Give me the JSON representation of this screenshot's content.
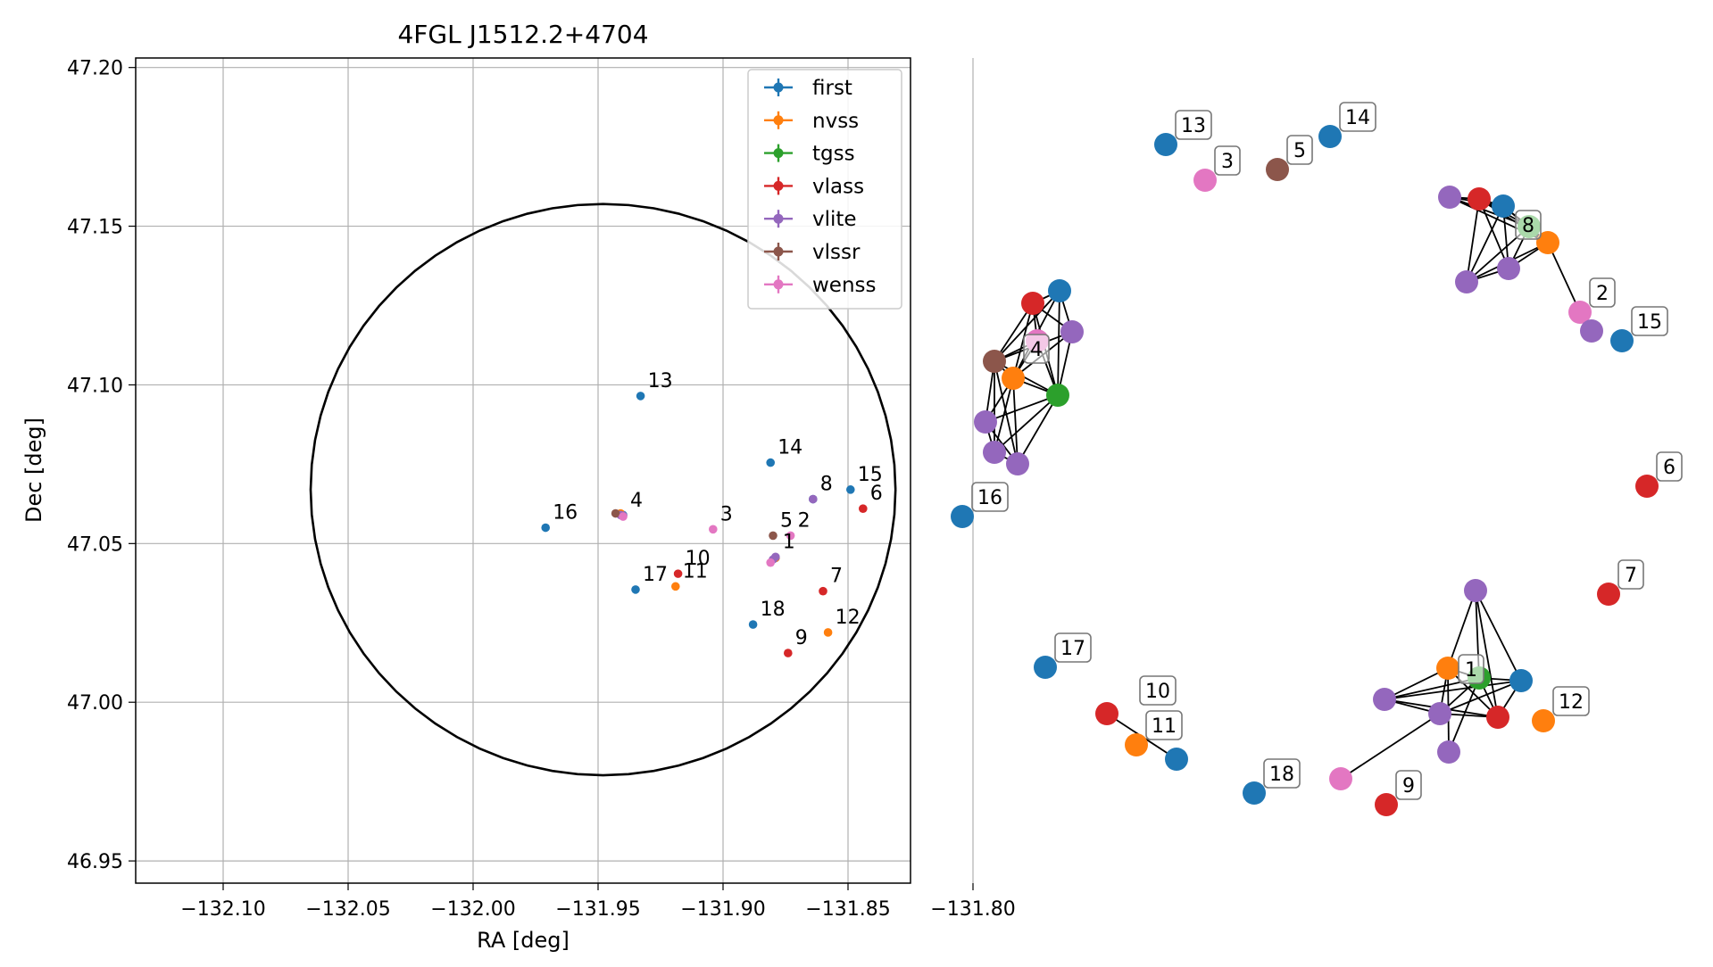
{
  "chart_data": [
    {
      "type": "scatter",
      "title": "4FGL J1512.2+4704",
      "xlabel": "RA [deg]",
      "ylabel": "Dec [deg]",
      "xlim": [
        -132.135,
        -131.825
      ],
      "ylim": [
        46.943,
        47.203
      ],
      "xticks": [
        -132.1,
        -132.05,
        -132.0,
        -131.95,
        -131.9,
        -131.85,
        -131.8
      ],
      "xtick_labels": [
        "−132.10",
        "−132.05",
        "−132.00",
        "−131.95",
        "−131.90",
        "−131.85",
        "−131.80"
      ],
      "yticks": [
        46.95,
        47.0,
        47.05,
        47.1,
        47.15,
        47.2
      ],
      "ytick_labels": [
        "46.95",
        "47.00",
        "47.05",
        "47.10",
        "47.15",
        "47.20"
      ],
      "grid": true,
      "legend_position": "top-right",
      "circle": {
        "center_ra": -131.948,
        "center_dec": 47.067,
        "radius_ra": 0.117,
        "radius_dec": 0.09
      },
      "series": [
        {
          "name": "first",
          "color": "#1f77b4"
        },
        {
          "name": "nvss",
          "color": "#ff7f0e"
        },
        {
          "name": "tgss",
          "color": "#2ca02c"
        },
        {
          "name": "vlass",
          "color": "#d62728"
        },
        {
          "name": "vlite",
          "color": "#9467bd"
        },
        {
          "name": "vlssr",
          "color": "#8c564b"
        },
        {
          "name": "wenss",
          "color": "#e377c2"
        }
      ],
      "points": [
        {
          "label": "13",
          "survey": "first",
          "ra": -131.933,
          "dec": 47.0965
        },
        {
          "label": "14",
          "survey": "first",
          "ra": -131.881,
          "dec": 47.0755
        },
        {
          "label": "15",
          "survey": "first",
          "ra": -131.849,
          "dec": 47.067
        },
        {
          "label": "16",
          "survey": "first",
          "ra": -131.971,
          "dec": 47.055
        },
        {
          "label": "17",
          "survey": "first",
          "ra": -131.935,
          "dec": 47.0355
        },
        {
          "label": "18",
          "survey": "first",
          "ra": -131.888,
          "dec": 47.0245
        },
        {
          "label": "",
          "survey": "first",
          "ra": -131.879,
          "dec": 47.0455
        },
        {
          "label": "",
          "survey": "first",
          "ra": -131.94,
          "dec": 47.059
        },
        {
          "label": "",
          "survey": "first",
          "ra": -131.864,
          "dec": 47.064
        },
        {
          "label": "11",
          "survey": "nvss",
          "ra": -131.919,
          "dec": 47.0365
        },
        {
          "label": "12",
          "survey": "nvss",
          "ra": -131.858,
          "dec": 47.022
        },
        {
          "label": "",
          "survey": "nvss",
          "ra": -131.941,
          "dec": 47.0595
        },
        {
          "label": "",
          "survey": "nvss",
          "ra": -131.879,
          "dec": 47.0455
        },
        {
          "label": "6",
          "survey": "vlass",
          "ra": -131.844,
          "dec": 47.061
        },
        {
          "label": "7",
          "survey": "vlass",
          "ra": -131.86,
          "dec": 47.035
        },
        {
          "label": "9",
          "survey": "vlass",
          "ra": -131.874,
          "dec": 47.0155
        },
        {
          "label": "10",
          "survey": "vlass",
          "ra": -131.918,
          "dec": 47.0405
        },
        {
          "label": "8",
          "survey": "vlite",
          "ra": -131.864,
          "dec": 47.064
        },
        {
          "label": "1",
          "survey": "vlite",
          "ra": -131.879,
          "dec": 47.0458
        },
        {
          "label": "",
          "survey": "vlite",
          "ra": -131.88,
          "dec": 47.045
        },
        {
          "label": "4",
          "survey": "vlite",
          "ra": -131.94,
          "dec": 47.0588
        },
        {
          "label": "",
          "survey": "vlite",
          "ra": -131.941,
          "dec": 47.059
        },
        {
          "label": "5",
          "survey": "vlssr",
          "ra": -131.88,
          "dec": 47.0525
        },
        {
          "label": "",
          "survey": "vlssr",
          "ra": -131.943,
          "dec": 47.0595
        },
        {
          "label": "3",
          "survey": "wenss",
          "ra": -131.904,
          "dec": 47.0545
        },
        {
          "label": "2",
          "survey": "wenss",
          "ra": -131.873,
          "dec": 47.0525
        },
        {
          "label": "",
          "survey": "wenss",
          "ra": -131.881,
          "dec": 47.044
        },
        {
          "label": "",
          "survey": "wenss",
          "ra": -131.94,
          "dec": 47.0585
        }
      ]
    },
    {
      "type": "network",
      "nodes": [
        {
          "id": "n13",
          "label": "13",
          "color": "#1f77b4"
        },
        {
          "id": "n3",
          "label": "3",
          "color": "#e377c2"
        },
        {
          "id": "n5",
          "label": "5",
          "color": "#8c564b"
        },
        {
          "id": "n14",
          "label": "14",
          "color": "#1f77b4"
        },
        {
          "id": "n8",
          "label": "8",
          "color": "#2ca02c"
        },
        {
          "id": "c1a",
          "label": "",
          "color": "#9467bd"
        },
        {
          "id": "c1b",
          "label": "",
          "color": "#d62728"
        },
        {
          "id": "c1c",
          "label": "",
          "color": "#1f77b4"
        },
        {
          "id": "c1d",
          "label": "",
          "color": "#ff7f0e"
        },
        {
          "id": "c1e",
          "label": "",
          "color": "#9467bd"
        },
        {
          "id": "c1f",
          "label": "",
          "color": "#9467bd"
        },
        {
          "id": "n2",
          "label": "2",
          "color": "#e377c2"
        },
        {
          "id": "c1g",
          "label": "",
          "color": "#9467bd"
        },
        {
          "id": "n15",
          "label": "15",
          "color": "#1f77b4"
        },
        {
          "id": "c2a",
          "label": "",
          "color": "#1f77b4"
        },
        {
          "id": "c2b",
          "label": "",
          "color": "#d62728"
        },
        {
          "id": "c2c",
          "label": "",
          "color": "#9467bd"
        },
        {
          "id": "c2d",
          "label": "",
          "color": "#e377c2"
        },
        {
          "id": "n4",
          "label": "4",
          "color": "#8c564b"
        },
        {
          "id": "c2e",
          "label": "",
          "color": "#ff7f0e"
        },
        {
          "id": "c2f",
          "label": "",
          "color": "#2ca02c"
        },
        {
          "id": "c2g",
          "label": "",
          "color": "#9467bd"
        },
        {
          "id": "c2h",
          "label": "",
          "color": "#9467bd"
        },
        {
          "id": "c2i",
          "label": "",
          "color": "#9467bd"
        },
        {
          "id": "n16",
          "label": "16",
          "color": "#1f77b4"
        },
        {
          "id": "n6",
          "label": "6",
          "color": "#d62728"
        },
        {
          "id": "n7",
          "label": "7",
          "color": "#d62728"
        },
        {
          "id": "n17",
          "label": "17",
          "color": "#1f77b4"
        },
        {
          "id": "c3a",
          "label": "",
          "color": "#9467bd"
        },
        {
          "id": "c3b",
          "label": "",
          "color": "#ff7f0e"
        },
        {
          "id": "n1",
          "label": "1",
          "color": "#2ca02c"
        },
        {
          "id": "c3c",
          "label": "",
          "color": "#1f77b4"
        },
        {
          "id": "c3d",
          "label": "",
          "color": "#9467bd"
        },
        {
          "id": "c3e",
          "label": "",
          "color": "#9467bd"
        },
        {
          "id": "c3f",
          "label": "",
          "color": "#d62728"
        },
        {
          "id": "c3g",
          "label": "",
          "color": "#9467bd"
        },
        {
          "id": "n12",
          "label": "12",
          "color": "#ff7f0e"
        },
        {
          "id": "n10",
          "label": "10",
          "color": "#d62728"
        },
        {
          "id": "n11",
          "label": "11",
          "color": "#ff7f0e"
        },
        {
          "id": "c4a",
          "label": "",
          "color": "#1f77b4"
        },
        {
          "id": "n18",
          "label": "18",
          "color": "#1f77b4"
        },
        {
          "id": "c4b",
          "label": "",
          "color": "#e377c2"
        },
        {
          "id": "n9",
          "label": "9",
          "color": "#d62728"
        }
      ],
      "edges": [
        [
          "c1a",
          "c1b"
        ],
        [
          "c1a",
          "c1c"
        ],
        [
          "c1a",
          "n8"
        ],
        [
          "c1a",
          "c1d"
        ],
        [
          "c1b",
          "c1c"
        ],
        [
          "c1b",
          "n8"
        ],
        [
          "c1b",
          "c1d"
        ],
        [
          "c1b",
          "c1e"
        ],
        [
          "c1b",
          "c1f"
        ],
        [
          "c1c",
          "n8"
        ],
        [
          "c1c",
          "c1d"
        ],
        [
          "c1c",
          "c1e"
        ],
        [
          "c1c",
          "c1f"
        ],
        [
          "n8",
          "c1d"
        ],
        [
          "n8",
          "c1e"
        ],
        [
          "n8",
          "c1f"
        ],
        [
          "c1d",
          "c1e"
        ],
        [
          "c1d",
          "c1f"
        ],
        [
          "c1e",
          "c1f"
        ],
        [
          "c1d",
          "n2"
        ],
        [
          "n2",
          "c1g"
        ],
        [
          "c2a",
          "c2b"
        ],
        [
          "c2a",
          "c2c"
        ],
        [
          "c2a",
          "n4"
        ],
        [
          "c2a",
          "c2e"
        ],
        [
          "c2a",
          "c2f"
        ],
        [
          "c2b",
          "c2c"
        ],
        [
          "c2b",
          "n4"
        ],
        [
          "c2b",
          "c2e"
        ],
        [
          "c2b",
          "c2d"
        ],
        [
          "c2b",
          "c2f"
        ],
        [
          "c2c",
          "n4"
        ],
        [
          "c2c",
          "c2f"
        ],
        [
          "c2c",
          "c2e"
        ],
        [
          "c2d",
          "n4"
        ],
        [
          "c2d",
          "c2e"
        ],
        [
          "c2d",
          "c2f"
        ],
        [
          "n4",
          "c2e"
        ],
        [
          "n4",
          "c2f"
        ],
        [
          "n4",
          "c2g"
        ],
        [
          "n4",
          "c2h"
        ],
        [
          "n4",
          "c2i"
        ],
        [
          "c2e",
          "c2f"
        ],
        [
          "c2e",
          "c2g"
        ],
        [
          "c2e",
          "c2h"
        ],
        [
          "c2e",
          "c2i"
        ],
        [
          "c2f",
          "c2g"
        ],
        [
          "c2f",
          "c2h"
        ],
        [
          "c2f",
          "c2i"
        ],
        [
          "c2g",
          "c2h"
        ],
        [
          "c2g",
          "c2i"
        ],
        [
          "c2h",
          "c2i"
        ],
        [
          "c3a",
          "c3b"
        ],
        [
          "c3a",
          "n1"
        ],
        [
          "c3a",
          "c3f"
        ],
        [
          "c3a",
          "c3c"
        ],
        [
          "c3b",
          "n1"
        ],
        [
          "c3b",
          "c3d"
        ],
        [
          "c3b",
          "c3e"
        ],
        [
          "c3b",
          "c3g"
        ],
        [
          "c3b",
          "c3f"
        ],
        [
          "n1",
          "c3c"
        ],
        [
          "n1",
          "c3d"
        ],
        [
          "n1",
          "c3e"
        ],
        [
          "n1",
          "c3f"
        ],
        [
          "n1",
          "c3g"
        ],
        [
          "c3c",
          "c3d"
        ],
        [
          "c3c",
          "c3f"
        ],
        [
          "c3c",
          "c3e"
        ],
        [
          "c3d",
          "c3e"
        ],
        [
          "c3d",
          "c3f"
        ],
        [
          "c3e",
          "c3f"
        ],
        [
          "c3e",
          "c4b"
        ],
        [
          "n10",
          "c4a"
        ]
      ]
    }
  ]
}
